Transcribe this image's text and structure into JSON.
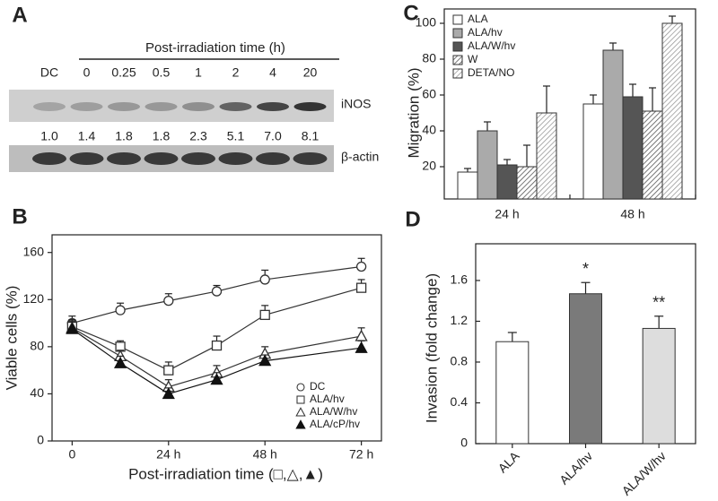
{
  "chart_data": [
    {
      "type": "blot",
      "panel": "A",
      "title": "Post-irradiation time (h)",
      "categories": [
        "DC",
        "0",
        "0.25",
        "0.5",
        "1",
        "2",
        "4",
        "20"
      ],
      "values": [
        1.0,
        1.4,
        1.8,
        1.8,
        2.3,
        5.1,
        7.0,
        8.1
      ],
      "value_labels": [
        "1.0",
        "1.4",
        "1.8",
        "1.8",
        "2.3",
        "5.1",
        "7.0",
        "8.1"
      ],
      "rows": [
        "iNOS",
        "β-actin"
      ]
    },
    {
      "type": "line",
      "panel": "B",
      "xlabel": "Post-irradiation time (□,△,▲)",
      "ylabel": "Viable cells (%)",
      "x": [
        0,
        12,
        24,
        36,
        48,
        72
      ],
      "xlim": [
        -5,
        77
      ],
      "xticks": [
        0,
        {
          "value": 24,
          "label": "24 h"
        },
        {
          "value": 48,
          "label": "48 h"
        },
        {
          "value": 72,
          "label": "72 h"
        }
      ],
      "ylim": [
        0,
        175
      ],
      "yticks": [
        0,
        40,
        80,
        120,
        160
      ],
      "legend": "lower right",
      "series": [
        {
          "name": "DC",
          "color": "#333333",
          "marker": "circle",
          "filled": false,
          "values": [
            100,
            111,
            119,
            127,
            137,
            148
          ],
          "errors": [
            6,
            6,
            6,
            5,
            8,
            7
          ]
        },
        {
          "name": "ALA/hv",
          "color": "#333333",
          "marker": "square",
          "filled": false,
          "values": [
            97,
            80,
            60,
            81,
            107,
            130
          ],
          "errors": [
            6,
            5,
            7,
            8,
            8,
            7
          ]
        },
        {
          "name": "ALA/W/hv",
          "color": "#333333",
          "marker": "triangle",
          "filled": false,
          "values": [
            96,
            72,
            46,
            58,
            74,
            89
          ],
          "errors": [
            6,
            5,
            6,
            6,
            6,
            7
          ]
        },
        {
          "name": "ALA/cP/hv",
          "color": "#111111",
          "marker": "triangle",
          "filled": true,
          "values": [
            95,
            66,
            40,
            52,
            68,
            79
          ],
          "errors": [
            6,
            6,
            5,
            6,
            5,
            6
          ]
        }
      ]
    },
    {
      "type": "grouped-bar",
      "panel": "C",
      "ylabel": "Migration (%)",
      "categories": [
        "24 h",
        "48 h"
      ],
      "ylim": [
        2,
        108
      ],
      "yticks": [
        20,
        40,
        60,
        80,
        100
      ],
      "legend": "upper left",
      "series": [
        {
          "name": "ALA",
          "color": "#ffffff",
          "hatch": false,
          "values": [
            17,
            55
          ],
          "errors": [
            2,
            5
          ]
        },
        {
          "name": "ALA/hv",
          "color": "#aaaaaa",
          "hatch": false,
          "values": [
            40,
            85
          ],
          "errors": [
            5,
            4
          ]
        },
        {
          "name": "ALA/W/hv",
          "color": "#555555",
          "hatch": false,
          "values": [
            21,
            59
          ],
          "errors": [
            3,
            7
          ]
        },
        {
          "name": "W",
          "color": "#555555",
          "hatch": true,
          "values": [
            20,
            51
          ],
          "errors": [
            12,
            13
          ]
        },
        {
          "name": "DETA/NO",
          "color": "#999999",
          "hatch": true,
          "values": [
            50,
            100
          ],
          "errors": [
            15,
            4
          ]
        }
      ]
    },
    {
      "type": "bar",
      "panel": "D",
      "ylabel": "Invasion (fold change)",
      "categories": [
        "ALA",
        "ALA/hv",
        "ALA/W/hv"
      ],
      "values": [
        1.0,
        1.47,
        1.13
      ],
      "errors": [
        0.09,
        0.11,
        0.12
      ],
      "colors": [
        "#ffffff",
        "#7a7a7a",
        "#dddddd"
      ],
      "ylim": [
        0,
        1.96
      ],
      "yticks": [
        0,
        0.4,
        0.8,
        1.2,
        1.6
      ],
      "annotations": [
        {
          "category": "ALA/hv",
          "text": "*"
        },
        {
          "category": "ALA/W/hv",
          "text": "**"
        }
      ]
    }
  ]
}
